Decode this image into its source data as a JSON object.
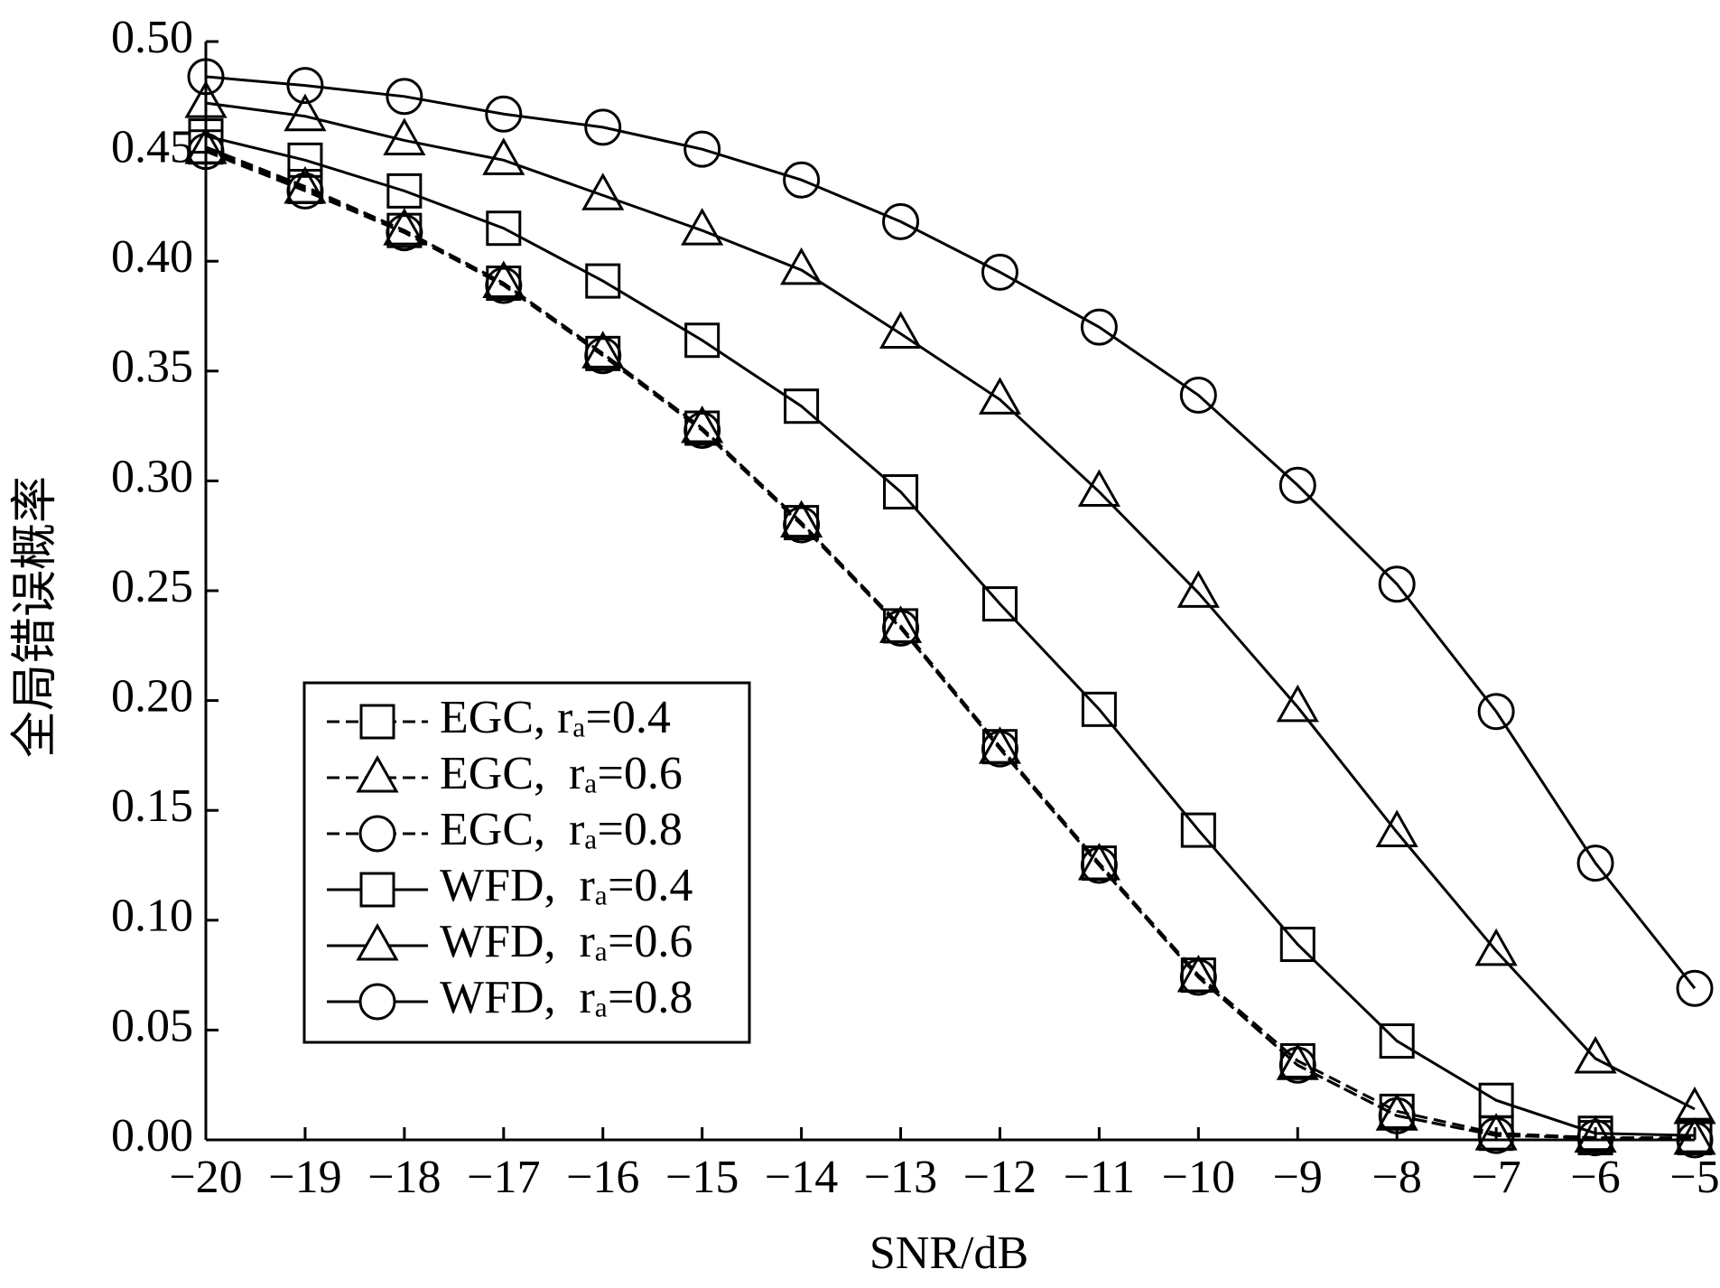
{
  "chart_data": {
    "type": "line",
    "xlabel": "SNR/dB",
    "ylabel": "全局错误概率",
    "x": [
      -20,
      -19,
      -18,
      -17,
      -16,
      -15,
      -14,
      -13,
      -12,
      -11,
      -10,
      -9,
      -8,
      -7,
      -6,
      -5
    ],
    "xlim": [
      -20,
      -5
    ],
    "ylim": [
      0,
      0.5
    ],
    "xticks": [
      {
        "value": -20,
        "label": "−20"
      },
      {
        "value": -19,
        "label": "−19"
      },
      {
        "value": -18,
        "label": "−18"
      },
      {
        "value": -17,
        "label": "−17"
      },
      {
        "value": -16,
        "label": "−16"
      },
      {
        "value": -15,
        "label": "−15"
      },
      {
        "value": -14,
        "label": "−14"
      },
      {
        "value": -13,
        "label": "−13"
      },
      {
        "value": -12,
        "label": "−12"
      },
      {
        "value": -11,
        "label": "−11"
      },
      {
        "value": -10,
        "label": "−10"
      },
      {
        "value": -9,
        "label": "−9"
      },
      {
        "value": -8,
        "label": "−8"
      },
      {
        "value": -7,
        "label": "−7"
      },
      {
        "value": -6,
        "label": "−6"
      },
      {
        "value": -5,
        "label": "−5"
      }
    ],
    "yticks": [
      {
        "value": 0,
        "label": "0.00"
      },
      {
        "value": 0.05,
        "label": "0.05"
      },
      {
        "value": 0.1,
        "label": "0.10"
      },
      {
        "value": 0.15,
        "label": "0.15"
      },
      {
        "value": 0.2,
        "label": "0.20"
      },
      {
        "value": 0.25,
        "label": "0.25"
      },
      {
        "value": 0.3,
        "label": "0.30"
      },
      {
        "value": 0.35,
        "label": "0.35"
      },
      {
        "value": 0.4,
        "label": "0.40"
      },
      {
        "value": 0.45,
        "label": "0.45"
      },
      {
        "value": 0.5,
        "label": "0.50"
      }
    ],
    "series": [
      {
        "name": "EGC, rₐ=0.4",
        "color": "#000000",
        "dash": true,
        "marker": "square",
        "values": [
          0.452,
          0.434,
          0.414,
          0.39,
          0.358,
          0.324,
          0.281,
          0.234,
          0.179,
          0.126,
          0.075,
          0.036,
          0.013,
          0.003,
          0.001,
          0.001
        ]
      },
      {
        "name": "EGC,  rₐ=0.6",
        "color": "#000000",
        "dash": true,
        "marker": "triangle",
        "values": [
          0.451,
          0.433,
          0.414,
          0.39,
          0.358,
          0.324,
          0.281,
          0.233,
          0.178,
          0.125,
          0.074,
          0.034,
          0.011,
          0.002,
          0.001,
          0
        ]
      },
      {
        "name": "EGC,  rₐ=0.8",
        "color": "#000000",
        "dash": true,
        "marker": "circle",
        "values": [
          0.45,
          0.432,
          0.413,
          0.389,
          0.357,
          0.323,
          0.28,
          0.233,
          0.178,
          0.125,
          0.074,
          0.034,
          0.011,
          0.002,
          0.001,
          0
        ]
      },
      {
        "name": "WFD,  rₐ=0.4",
        "color": "#000000",
        "dash": false,
        "marker": "square",
        "values": [
          0.457,
          0.446,
          0.432,
          0.415,
          0.391,
          0.364,
          0.334,
          0.295,
          0.244,
          0.196,
          0.141,
          0.089,
          0.045,
          0.018,
          0.003,
          0.002
        ]
      },
      {
        "name": "WFD,  rₐ=0.6",
        "color": "#000000",
        "dash": false,
        "marker": "triangle",
        "values": [
          0.472,
          0.466,
          0.455,
          0.446,
          0.43,
          0.414,
          0.396,
          0.367,
          0.337,
          0.295,
          0.249,
          0.197,
          0.14,
          0.086,
          0.037,
          0.014
        ]
      },
      {
        "name": "WFD,  rₐ=0.8",
        "color": "#000000",
        "dash": false,
        "marker": "circle",
        "values": [
          0.484,
          0.48,
          0.475,
          0.467,
          0.461,
          0.451,
          0.437,
          0.418,
          0.395,
          0.37,
          0.339,
          0.298,
          0.253,
          0.195,
          0.126,
          0.069
        ]
      }
    ]
  }
}
